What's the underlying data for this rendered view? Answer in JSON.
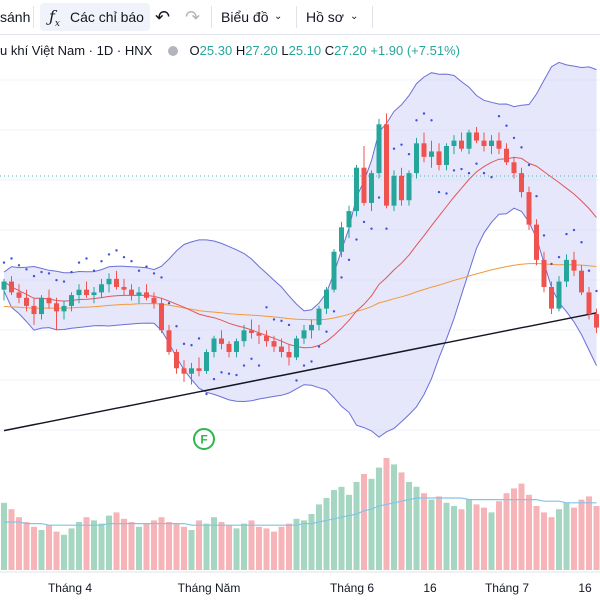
{
  "toolbar": {
    "compare_label": "sánh",
    "indicators_label": "Các chỉ báo",
    "indicators_icon": "fx-icon",
    "chart_type_label": "Biểu đồ",
    "profile_label": "Hồ sơ"
  },
  "legend": {
    "symbol": "u khí Việt Nam",
    "interval": "1D",
    "exchange": "HNX",
    "open_label": "O",
    "open": "25.30",
    "high_label": "H",
    "high": "27.20",
    "low_label": "L",
    "low": "25.10",
    "close_label": "C",
    "close": "27.20",
    "change": "+1.90 (+7.51%)"
  },
  "colors": {
    "up": "#26a69a",
    "down": "#ef5350",
    "bb_fill": "#d1d4f5",
    "bb_line": "#6b6fd8",
    "ma_red": "#e0565b",
    "ma_orange": "#f29a3b",
    "ma_black": "#131722",
    "sar": "#3f51e0",
    "vol_up": "#a5d6c1",
    "vol_down": "#f7b4b8",
    "vol_ma": "#82c4e6",
    "flag": "#2bb84d"
  },
  "flag_marker": "F",
  "chart_data": {
    "type": "candlestick",
    "x_ticks": [
      "Tháng 4",
      "Tháng Năm",
      "Tháng 6",
      "16",
      "Tháng 7",
      "16"
    ],
    "candles": [
      [
        21.1,
        21.5,
        20.7,
        21.4
      ],
      [
        21.4,
        21.6,
        20.9,
        21.0
      ],
      [
        21.0,
        21.3,
        20.6,
        20.8
      ],
      [
        20.8,
        21.1,
        20.3,
        20.5
      ],
      [
        20.5,
        20.8,
        19.8,
        20.2
      ],
      [
        20.2,
        20.9,
        20.0,
        20.8
      ],
      [
        20.8,
        21.1,
        20.4,
        20.6
      ],
      [
        20.6,
        20.8,
        19.6,
        20.3
      ],
      [
        20.3,
        20.7,
        20.0,
        20.5
      ],
      [
        20.5,
        21.0,
        20.3,
        20.9
      ],
      [
        20.9,
        21.3,
        20.6,
        21.1
      ],
      [
        21.1,
        21.4,
        20.8,
        20.9
      ],
      [
        20.9,
        21.2,
        20.6,
        21.0
      ],
      [
        21.0,
        21.5,
        20.8,
        21.3
      ],
      [
        21.3,
        21.7,
        21.0,
        21.5
      ],
      [
        21.5,
        21.8,
        21.1,
        21.2
      ],
      [
        21.2,
        21.5,
        20.9,
        21.1
      ],
      [
        21.1,
        21.3,
        20.7,
        20.9
      ],
      [
        20.9,
        21.2,
        20.6,
        21.0
      ],
      [
        21.0,
        21.3,
        20.7,
        20.8
      ],
      [
        20.8,
        21.0,
        20.4,
        20.6
      ],
      [
        20.6,
        20.8,
        19.5,
        19.6
      ],
      [
        19.6,
        19.8,
        18.7,
        18.8
      ],
      [
        18.8,
        18.9,
        18.0,
        18.2
      ],
      [
        18.2,
        18.5,
        17.7,
        18.0
      ],
      [
        18.0,
        18.4,
        17.6,
        18.2
      ],
      [
        18.2,
        18.6,
        17.9,
        18.1
      ],
      [
        18.1,
        18.9,
        18.0,
        18.8
      ],
      [
        18.8,
        19.4,
        18.6,
        19.3
      ],
      [
        19.3,
        19.6,
        18.9,
        19.1
      ],
      [
        19.1,
        19.2,
        18.6,
        18.8
      ],
      [
        18.8,
        19.3,
        18.6,
        19.2
      ],
      [
        19.2,
        19.8,
        19.0,
        19.6
      ],
      [
        19.6,
        20.0,
        19.3,
        19.5
      ],
      [
        19.5,
        19.8,
        19.1,
        19.4
      ],
      [
        19.4,
        19.6,
        19.0,
        19.2
      ],
      [
        19.2,
        19.4,
        18.8,
        19.0
      ],
      [
        19.0,
        19.3,
        18.6,
        18.8
      ],
      [
        18.8,
        19.1,
        18.3,
        18.6
      ],
      [
        18.6,
        19.4,
        18.5,
        19.3
      ],
      [
        19.3,
        19.8,
        19.1,
        19.6
      ],
      [
        19.6,
        20.0,
        19.3,
        19.8
      ],
      [
        19.8,
        20.5,
        19.6,
        20.4
      ],
      [
        20.4,
        21.2,
        20.2,
        21.1
      ],
      [
        21.1,
        22.6,
        21.0,
        22.5
      ],
      [
        22.5,
        23.6,
        22.3,
        23.4
      ],
      [
        23.4,
        24.2,
        23.0,
        24.0
      ],
      [
        24.0,
        25.7,
        23.8,
        25.6
      ],
      [
        25.6,
        26.4,
        24.2,
        24.3
      ],
      [
        24.3,
        25.5,
        24.0,
        25.4
      ],
      [
        25.4,
        27.4,
        25.2,
        27.2
      ],
      [
        27.2,
        27.6,
        24.1,
        24.2
      ],
      [
        24.2,
        25.5,
        24.0,
        25.3
      ],
      [
        25.3,
        25.6,
        24.2,
        24.4
      ],
      [
        24.4,
        25.5,
        24.2,
        25.4
      ],
      [
        25.4,
        26.7,
        25.2,
        26.5
      ],
      [
        26.5,
        26.9,
        25.8,
        26.0
      ],
      [
        26.0,
        26.6,
        25.6,
        26.2
      ],
      [
        26.2,
        26.5,
        25.5,
        25.7
      ],
      [
        25.7,
        26.5,
        25.5,
        26.4
      ],
      [
        26.4,
        26.8,
        26.1,
        26.6
      ],
      [
        26.6,
        26.9,
        26.2,
        26.3
      ],
      [
        26.3,
        27.0,
        26.1,
        26.9
      ],
      [
        26.9,
        27.1,
        26.5,
        26.6
      ],
      [
        26.6,
        26.9,
        26.2,
        26.4
      ],
      [
        26.4,
        26.8,
        26.1,
        26.6
      ],
      [
        26.6,
        26.9,
        26.1,
        26.3
      ],
      [
        26.3,
        26.5,
        25.7,
        25.8
      ],
      [
        25.8,
        26.0,
        25.2,
        25.4
      ],
      [
        25.4,
        25.6,
        24.5,
        24.7
      ],
      [
        24.7,
        24.9,
        23.3,
        23.5
      ],
      [
        23.5,
        23.7,
        22.0,
        22.2
      ],
      [
        22.2,
        22.5,
        21.0,
        21.2
      ],
      [
        21.2,
        21.4,
        20.2,
        20.4
      ],
      [
        20.4,
        21.6,
        20.3,
        21.4
      ],
      [
        21.4,
        22.4,
        21.2,
        22.2
      ],
      [
        22.2,
        22.5,
        21.6,
        21.8
      ],
      [
        21.8,
        22.0,
        20.9,
        21.0
      ],
      [
        21.0,
        21.2,
        20.0,
        20.2
      ],
      [
        20.2,
        20.4,
        19.5,
        19.7
      ]
    ],
    "volume": [
      42,
      38,
      33,
      30,
      27,
      25,
      28,
      24,
      22,
      26,
      30,
      33,
      31,
      29,
      34,
      36,
      32,
      30,
      27,
      29,
      31,
      33,
      30,
      29,
      27,
      25,
      31,
      29,
      33,
      30,
      28,
      26,
      29,
      31,
      27,
      26,
      24,
      27,
      29,
      32,
      31,
      35,
      41,
      45,
      50,
      52,
      47,
      55,
      60,
      57,
      64,
      70,
      66,
      61,
      55,
      52,
      48,
      44,
      46,
      42,
      40,
      38,
      44,
      41,
      39,
      36,
      43,
      48,
      51,
      54,
      47,
      40,
      36,
      33,
      38,
      42,
      39,
      44,
      46,
      40
    ],
    "volume_ma": [
      30,
      30,
      30,
      29,
      29,
      29,
      28,
      28,
      28,
      28,
      28,
      28,
      28,
      28,
      29,
      29,
      29,
      29,
      29,
      29,
      29,
      29,
      29,
      29,
      29,
      28,
      28,
      28,
      28,
      28,
      28,
      28,
      28,
      28,
      28,
      28,
      28,
      28,
      28,
      28,
      29,
      29,
      30,
      31,
      32,
      33,
      34,
      35,
      37,
      38,
      40,
      41,
      42,
      43,
      44,
      45,
      45,
      45,
      45,
      45,
      45,
      45,
      44,
      44,
      44,
      44,
      44,
      44,
      44,
      44,
      44,
      44,
      43,
      43,
      43,
      42,
      42,
      42,
      42,
      42
    ],
    "price_range": [
      15.0,
      29.5
    ]
  }
}
